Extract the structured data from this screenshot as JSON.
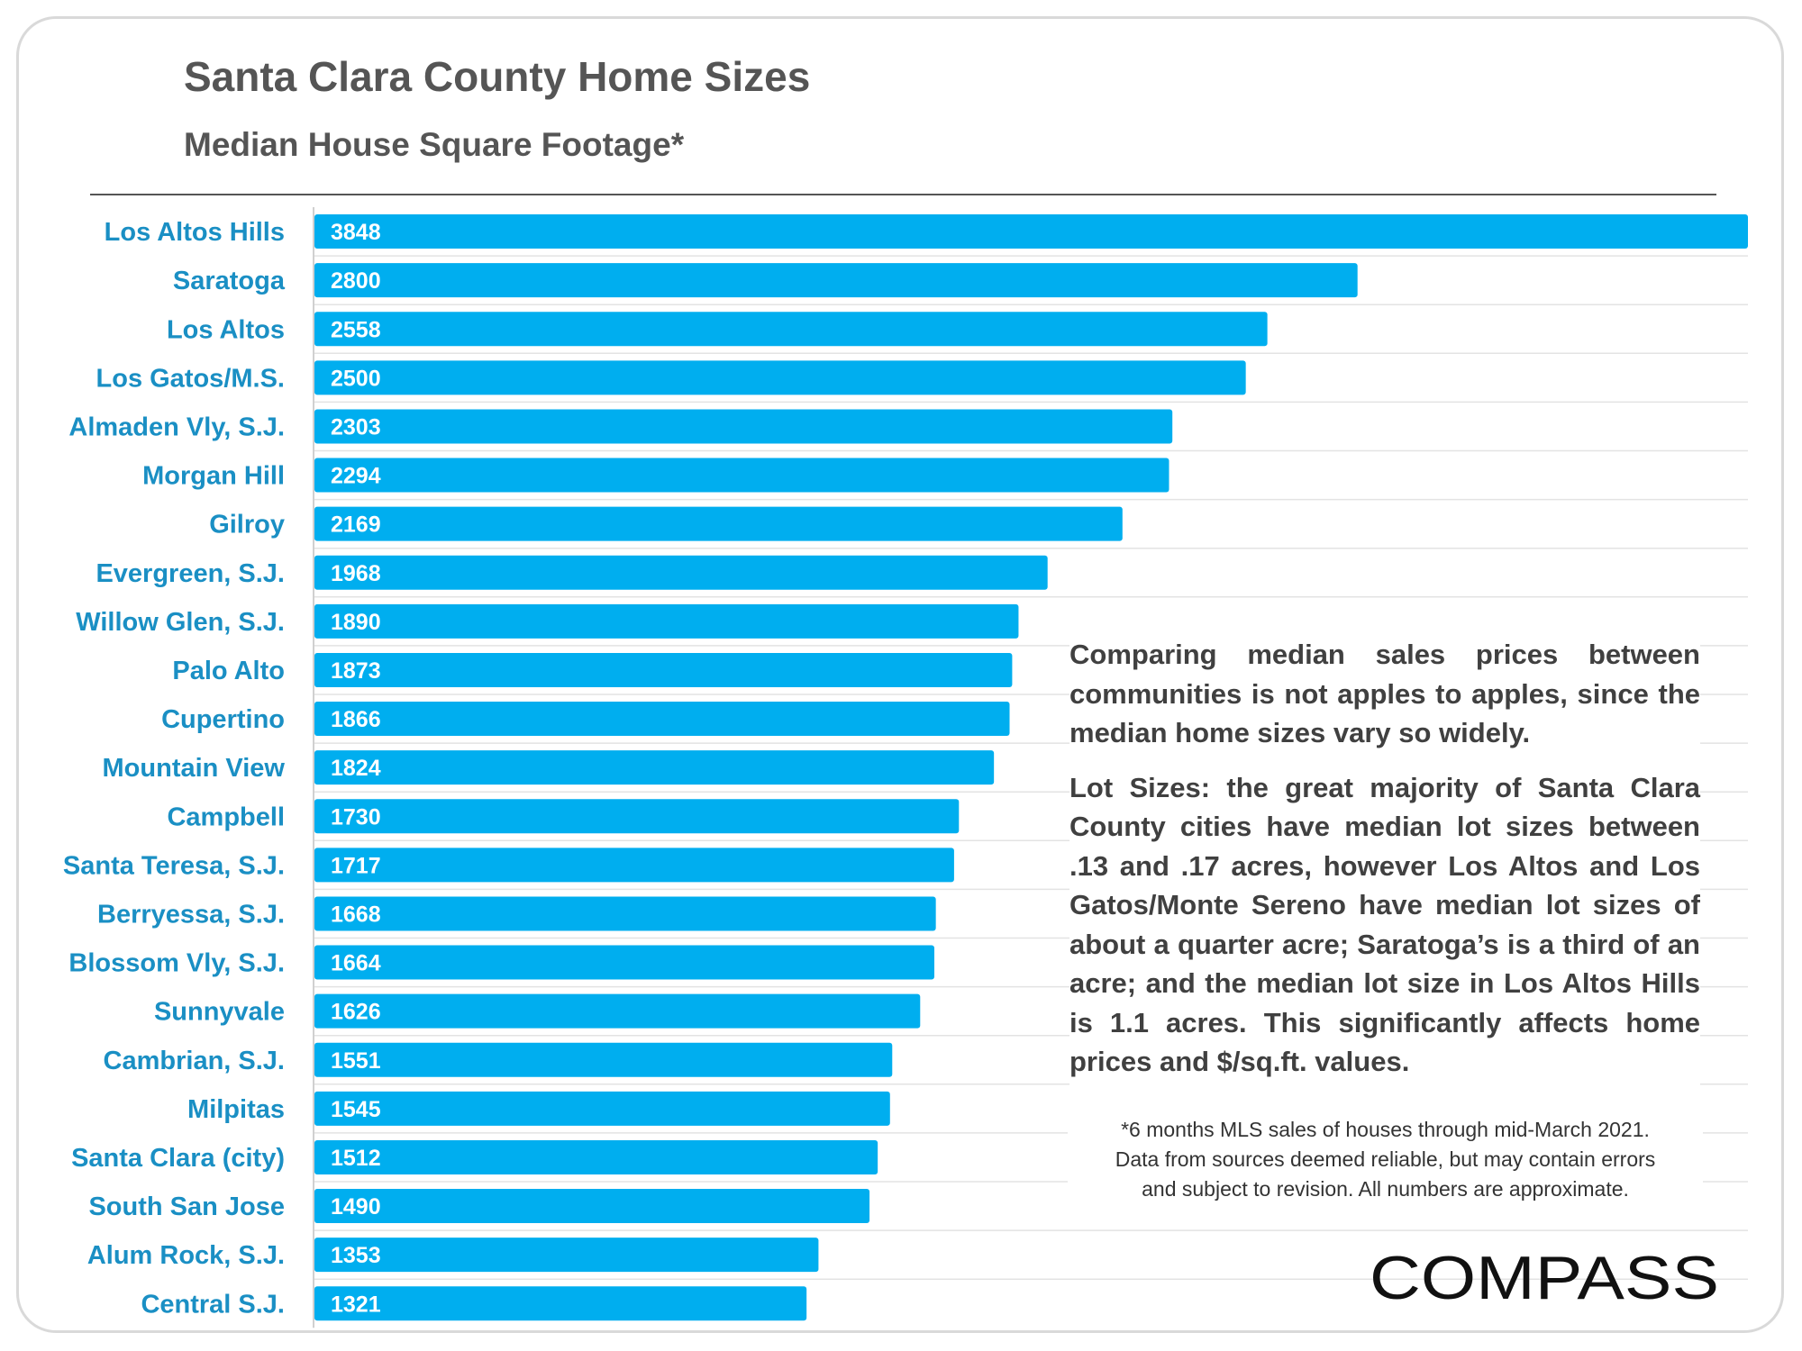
{
  "header": {
    "title": "Santa Clara County Home Sizes",
    "subtitle": "Median House Square Footage*"
  },
  "chart_data": {
    "type": "bar",
    "orientation": "horizontal",
    "categories": [
      "Los Altos Hills",
      "Saratoga",
      "Los Altos",
      "Los Gatos/M.S.",
      "Almaden Vly, S.J.",
      "Morgan Hill",
      "Gilroy",
      "Evergreen, S.J.",
      "Willow Glen, S.J.",
      "Palo Alto",
      "Cupertino",
      "Mountain View",
      "Campbell",
      "Santa Teresa, S.J.",
      "Berryessa, S.J.",
      "Blossom Vly, S.J.",
      "Sunnyvale",
      "Cambrian, S.J.",
      "Milpitas",
      "Santa Clara (city)",
      "South San Jose",
      "Alum Rock, S.J.",
      "Central S.J."
    ],
    "values": [
      3848,
      2800,
      2558,
      2500,
      2303,
      2294,
      2169,
      1968,
      1890,
      1873,
      1866,
      1824,
      1730,
      1717,
      1668,
      1664,
      1626,
      1551,
      1545,
      1512,
      1490,
      1353,
      1321
    ],
    "title": "Santa Clara County Home Sizes",
    "subtitle": "Median House Square Footage*",
    "xlabel": "",
    "ylabel": "",
    "xlim": [
      0,
      3848
    ],
    "grid": "horizontal separators",
    "legend": "none",
    "bar_color": "#00aeef",
    "data_labels": "inside-left"
  },
  "annotation": {
    "paragraph1": "Comparing median sales prices between communities is not apples to apples, since the median home sizes vary so widely.",
    "paragraph2": "Lot Sizes: the great majority of Santa Clara County cities have median lot sizes between .13 and .17 acres, however Los Altos and Los Gatos/Monte Sereno have median lot sizes of about a quarter acre; Saratoga’s is a third of an acre; and the median lot size in Los Altos Hills is 1.1 acres. This significantly affects home prices and $/sq.ft. values."
  },
  "footnote": {
    "line1": "*6 months MLS sales of houses through mid-March 2021.",
    "line2": "Data from sources deemed reliable, but may contain errors",
    "line3": "and subject to revision. All numbers are approximate."
  },
  "logo": {
    "text": "COMPASS"
  },
  "colors": {
    "bar": "#00aeef",
    "category_label": "#1a8fc4",
    "title": "#555555",
    "text": "#404040"
  }
}
